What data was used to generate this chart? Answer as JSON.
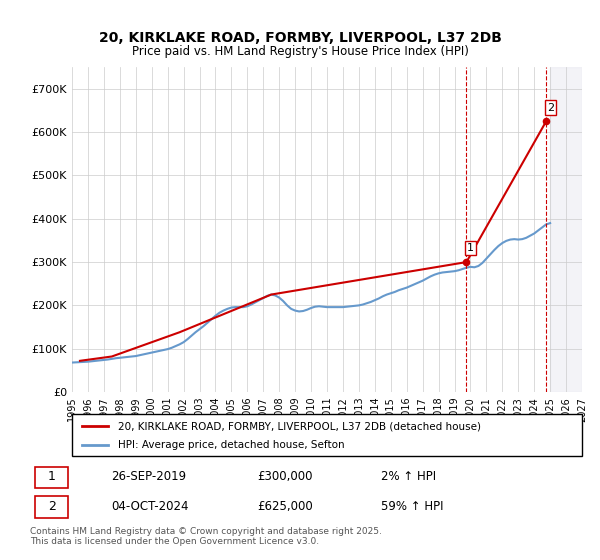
{
  "title": "20, KIRKLAKE ROAD, FORMBY, LIVERPOOL, L37 2DB",
  "subtitle": "Price paid vs. HM Land Registry's House Price Index (HPI)",
  "ylabel": "",
  "background_color": "#ffffff",
  "plot_bg_color": "#ffffff",
  "grid_color": "#cccccc",
  "hpi_color": "#6699cc",
  "price_color": "#cc0000",
  "ylim": [
    0,
    750000
  ],
  "yticks": [
    0,
    100000,
    200000,
    300000,
    400000,
    500000,
    600000,
    700000
  ],
  "ytick_labels": [
    "£0",
    "£100K",
    "£200K",
    "£300K",
    "£400K",
    "£500K",
    "£600K",
    "£700K"
  ],
  "legend_price_label": "20, KIRKLAKE ROAD, FORMBY, LIVERPOOL, L37 2DB (detached house)",
  "legend_hpi_label": "HPI: Average price, detached house, Sefton",
  "sale1_date": "26-SEP-2019",
  "sale1_price": 300000,
  "sale1_label": "1",
  "sale1_pct": "2% ↑ HPI",
  "sale2_date": "04-OCT-2024",
  "sale2_price": 625000,
  "sale2_label": "2",
  "sale2_pct": "59% ↑ HPI",
  "footer": "Contains HM Land Registry data © Crown copyright and database right 2025.\nThis data is licensed under the Open Government Licence v3.0.",
  "hpi_data": {
    "years": [
      1995.0,
      1995.25,
      1995.5,
      1995.75,
      1996.0,
      1996.25,
      1996.5,
      1996.75,
      1997.0,
      1997.25,
      1997.5,
      1997.75,
      1998.0,
      1998.25,
      1998.5,
      1998.75,
      1999.0,
      1999.25,
      1999.5,
      1999.75,
      2000.0,
      2000.25,
      2000.5,
      2000.75,
      2001.0,
      2001.25,
      2001.5,
      2001.75,
      2002.0,
      2002.25,
      2002.5,
      2002.75,
      2003.0,
      2003.25,
      2003.5,
      2003.75,
      2004.0,
      2004.25,
      2004.5,
      2004.75,
      2005.0,
      2005.25,
      2005.5,
      2005.75,
      2006.0,
      2006.25,
      2006.5,
      2006.75,
      2007.0,
      2007.25,
      2007.5,
      2007.75,
      2008.0,
      2008.25,
      2008.5,
      2008.75,
      2009.0,
      2009.25,
      2009.5,
      2009.75,
      2010.0,
      2010.25,
      2010.5,
      2010.75,
      2011.0,
      2011.25,
      2011.5,
      2011.75,
      2012.0,
      2012.25,
      2012.5,
      2012.75,
      2013.0,
      2013.25,
      2013.5,
      2013.75,
      2014.0,
      2014.25,
      2014.5,
      2014.75,
      2015.0,
      2015.25,
      2015.5,
      2015.75,
      2016.0,
      2016.25,
      2016.5,
      2016.75,
      2017.0,
      2017.25,
      2017.5,
      2017.75,
      2018.0,
      2018.25,
      2018.5,
      2018.75,
      2019.0,
      2019.25,
      2019.5,
      2019.75,
      2020.0,
      2020.25,
      2020.5,
      2020.75,
      2021.0,
      2021.25,
      2021.5,
      2021.75,
      2022.0,
      2022.25,
      2022.5,
      2022.75,
      2023.0,
      2023.25,
      2023.5,
      2023.75,
      2024.0,
      2024.25,
      2024.5,
      2024.75,
      2025.0
    ],
    "values": [
      68000,
      68500,
      69000,
      69500,
      70000,
      71000,
      72000,
      73000,
      74000,
      75000,
      76500,
      78000,
      79000,
      80000,
      81000,
      82000,
      83000,
      85000,
      87000,
      89000,
      91000,
      93000,
      95000,
      97000,
      99000,
      102000,
      106000,
      110000,
      115000,
      122000,
      130000,
      138000,
      145000,
      152000,
      160000,
      168000,
      176000,
      183000,
      188000,
      192000,
      195000,
      196000,
      196000,
      196000,
      198000,
      202000,
      207000,
      212000,
      217000,
      222000,
      225000,
      223000,
      218000,
      210000,
      200000,
      192000,
      188000,
      186000,
      187000,
      190000,
      194000,
      197000,
      198000,
      197000,
      196000,
      196000,
      196000,
      196000,
      196000,
      197000,
      198000,
      199000,
      200000,
      202000,
      205000,
      208000,
      212000,
      216000,
      221000,
      225000,
      228000,
      231000,
      235000,
      238000,
      241000,
      245000,
      249000,
      253000,
      257000,
      262000,
      267000,
      271000,
      274000,
      276000,
      277000,
      278000,
      279000,
      281000,
      284000,
      287000,
      289000,
      288000,
      291000,
      298000,
      308000,
      318000,
      328000,
      337000,
      344000,
      349000,
      352000,
      353000,
      352000,
      353000,
      356000,
      361000,
      366000,
      373000,
      380000,
      387000,
      390000
    ]
  },
  "price_data": {
    "years": [
      1995.5,
      1997.5,
      2001.75,
      2007.5,
      2019.75,
      2024.75
    ],
    "values": [
      72000,
      82000,
      138000,
      225000,
      300000,
      625000
    ]
  },
  "sale_markers": [
    {
      "year": 2019.75,
      "value": 300000,
      "label": "1"
    },
    {
      "year": 2024.75,
      "value": 625000,
      "label": "2"
    }
  ],
  "xmin": 1995,
  "xmax": 2027
}
